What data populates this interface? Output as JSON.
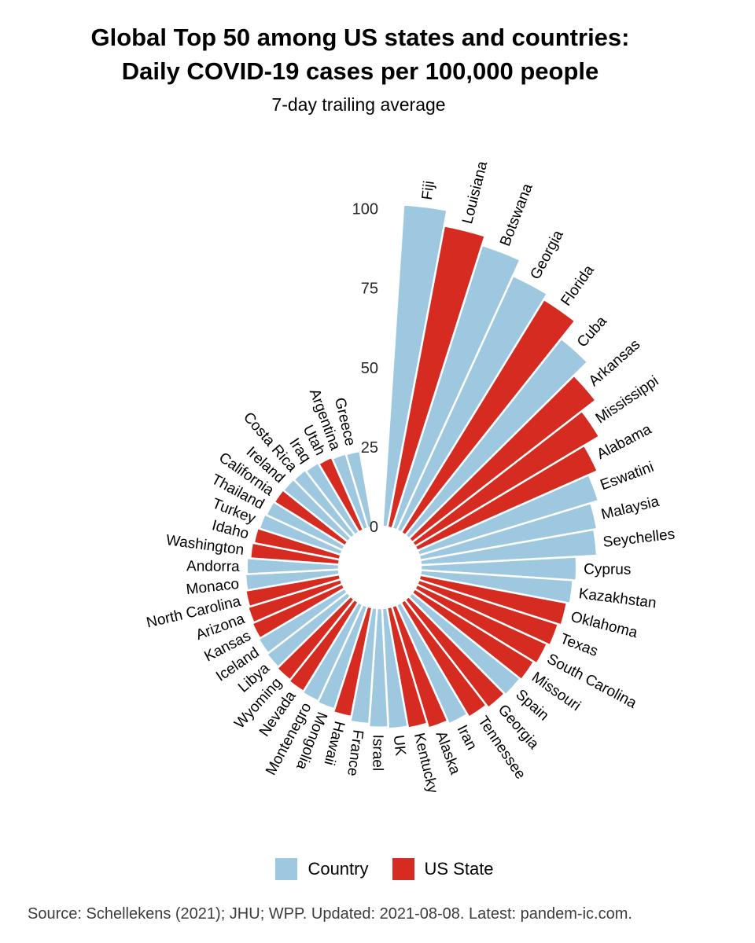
{
  "title": {
    "line1": "Global Top 50 among US states and countries:",
    "line2": "Daily COVID-19 cases per 100,000 people"
  },
  "subtitle": "7-day trailing average",
  "legend": {
    "items": [
      {
        "label": "Country",
        "key": "country"
      },
      {
        "label": "US State",
        "key": "us_state"
      }
    ]
  },
  "footer": "Source: Schellekens (2021); JHU; WPP. Updated: 2021-08-08. Latest: pandem-ic.com.",
  "chart_data": {
    "type": "bar",
    "variant": "circular-polar",
    "title": "Global Top 50 among US states and countries: Daily COVID-19 cases per 100,000 people",
    "subtitle": "7-day trailing average",
    "unit": "daily COVID-19 cases per 100,000 people, 7-day trailing average",
    "sort": "descending-clockwise-from-top",
    "legend_position": "bottom",
    "radial_axis": {
      "ticks": [
        0,
        25,
        50,
        75,
        100
      ],
      "range": [
        0,
        105
      ],
      "grid": false
    },
    "colors": {
      "country": "#9EC7E0",
      "us_state": "#D62B20"
    },
    "entries": [
      {
        "name": "Fiji",
        "type": "country",
        "value": 101.5
      },
      {
        "name": "Louisiana",
        "type": "us_state",
        "value": 96.5
      },
      {
        "name": "Botswana",
        "type": "country",
        "value": 93.5
      },
      {
        "name": "Georgia",
        "type": "country",
        "value": 88
      },
      {
        "name": "Florida",
        "type": "us_state",
        "value": 86
      },
      {
        "name": "Cuba",
        "type": "country",
        "value": 79
      },
      {
        "name": "Arkansas",
        "type": "us_state",
        "value": 73
      },
      {
        "name": "Mississippi",
        "type": "us_state",
        "value": 67.5
      },
      {
        "name": "Alabama",
        "type": "us_state",
        "value": 62
      },
      {
        "name": "Eswatini",
        "type": "country",
        "value": 59
      },
      {
        "name": "Malaysia",
        "type": "country",
        "value": 56.5
      },
      {
        "name": "Seychelles",
        "type": "country",
        "value": 55.5
      },
      {
        "name": "Cyprus",
        "type": "country",
        "value": 49
      },
      {
        "name": "Kazakhstan",
        "type": "country",
        "value": 48
      },
      {
        "name": "Oklahoma",
        "type": "us_state",
        "value": 47
      },
      {
        "name": "Texas",
        "type": "us_state",
        "value": 46
      },
      {
        "name": "South Carolina",
        "type": "us_state",
        "value": 45
      },
      {
        "name": "Missouri",
        "type": "us_state",
        "value": 44
      },
      {
        "name": "Spain",
        "type": "country",
        "value": 43.5
      },
      {
        "name": "Georgia",
        "type": "us_state",
        "value": 43
      },
      {
        "name": "Tennessee",
        "type": "us_state",
        "value": 42
      },
      {
        "name": "Iran",
        "type": "country",
        "value": 41
      },
      {
        "name": "Alaska",
        "type": "us_state",
        "value": 40
      },
      {
        "name": "Kentucky",
        "type": "us_state",
        "value": 38.5
      },
      {
        "name": "UK",
        "type": "country",
        "value": 38
      },
      {
        "name": "Israel",
        "type": "country",
        "value": 37.5
      },
      {
        "name": "France",
        "type": "country",
        "value": 36.5
      },
      {
        "name": "Hawaii",
        "type": "us_state",
        "value": 35
      },
      {
        "name": "Mongolia",
        "type": "country",
        "value": 34
      },
      {
        "name": "Montenegro",
        "type": "country",
        "value": 33.5
      },
      {
        "name": "Nevada",
        "type": "us_state",
        "value": 33
      },
      {
        "name": "Wyoming",
        "type": "us_state",
        "value": 32.5
      },
      {
        "name": "Libya",
        "type": "country",
        "value": 32
      },
      {
        "name": "Iceland",
        "type": "country",
        "value": 31.5
      },
      {
        "name": "Kansas",
        "type": "us_state",
        "value": 31
      },
      {
        "name": "Arizona",
        "type": "us_state",
        "value": 30.5
      },
      {
        "name": "North Carolina",
        "type": "us_state",
        "value": 30
      },
      {
        "name": "Monaco",
        "type": "country",
        "value": 29.5
      },
      {
        "name": "Andorra",
        "type": "country",
        "value": 29
      },
      {
        "name": "Washington",
        "type": "us_state",
        "value": 28
      },
      {
        "name": "Idaho",
        "type": "us_state",
        "value": 27.5
      },
      {
        "name": "Turkey",
        "type": "country",
        "value": 27
      },
      {
        "name": "Thailand",
        "type": "country",
        "value": 26.5
      },
      {
        "name": "California",
        "type": "us_state",
        "value": 26.2
      },
      {
        "name": "Ireland",
        "type": "country",
        "value": 26
      },
      {
        "name": "Costa Rica",
        "type": "country",
        "value": 25.8
      },
      {
        "name": "Iraq",
        "type": "country",
        "value": 25.4
      },
      {
        "name": "Utah",
        "type": "us_state",
        "value": 25
      },
      {
        "name": "Argentina",
        "type": "country",
        "value": 24.5
      },
      {
        "name": "Greece",
        "type": "country",
        "value": 24.3
      }
    ]
  }
}
